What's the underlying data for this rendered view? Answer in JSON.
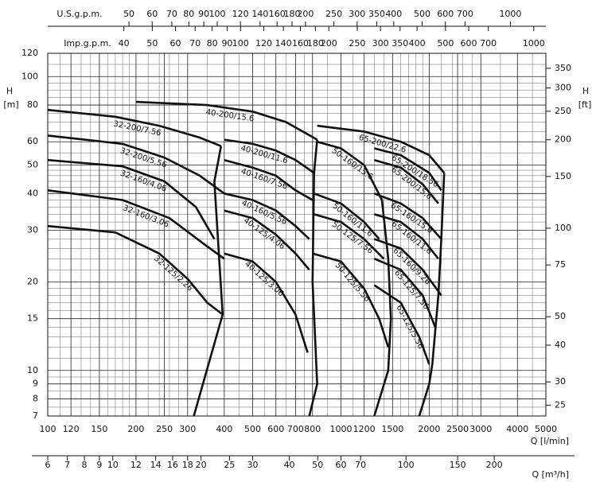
{
  "chart_data": {
    "type": "line",
    "log_x": true,
    "log_y": true,
    "grid": true,
    "color": "#111111",
    "xlabel": "Q [l/min]",
    "ylabel": "H",
    "ylabel_unit": "[m]",
    "y2label": "H",
    "y2label_unit": "[ft]",
    "xlim": [
      100,
      5000
    ],
    "xticks": [
      100,
      120,
      150,
      200,
      250,
      300,
      400,
      500,
      600,
      700,
      800,
      1000,
      1200,
      1500,
      2000,
      2500,
      3000,
      4000,
      5000
    ],
    "ylim": [
      7,
      120
    ],
    "yticks": [
      7,
      8,
      9,
      10,
      15,
      20,
      30,
      40,
      50,
      60,
      80,
      100,
      120
    ],
    "x_minor_grid": [
      110,
      130,
      140,
      160,
      170,
      180,
      190,
      220,
      240,
      260,
      280,
      350,
      450,
      550,
      650,
      750,
      900,
      1100,
      1300,
      1400,
      1600,
      1700,
      1800,
      1900,
      2200,
      2400,
      2600,
      2800,
      3500,
      4500
    ],
    "y_minor_grid": [
      7.5,
      8.5,
      9.5,
      11,
      12,
      13,
      14,
      16,
      17,
      18,
      19,
      22,
      24,
      26,
      28,
      32,
      34,
      36,
      38,
      42,
      44,
      46,
      48,
      55,
      65,
      70,
      75,
      85,
      90,
      95,
      110
    ],
    "y2lim": [
      22.97,
      393.7
    ],
    "y2ticks": [
      25,
      30,
      40,
      50,
      75,
      100,
      150,
      200,
      250,
      300,
      350
    ],
    "top_axes": [
      {
        "label": "U.S.g.p.m.",
        "xlim": [
          26.42,
          1321
        ],
        "xticks": [
          50,
          60,
          70,
          80,
          90,
          100,
          120,
          140,
          160,
          180,
          200,
          250,
          300,
          350,
          400,
          500,
          600,
          700,
          1000
        ]
      },
      {
        "label": "Imp.g.p.m.",
        "xlim": [
          22.0,
          1099.8
        ],
        "xticks": [
          40,
          50,
          60,
          70,
          80,
          90,
          100,
          120,
          140,
          160,
          180,
          200,
          250,
          300,
          350,
          400,
          500,
          600,
          700,
          1000
        ]
      }
    ],
    "x2": {
      "label": "Q [m³/h]",
      "xlim": [
        6,
        300
      ],
      "xticks": [
        6,
        7,
        8,
        9,
        10,
        12,
        14,
        16,
        18,
        20,
        25,
        30,
        40,
        50,
        60,
        70,
        100,
        150,
        200
      ]
    },
    "series": [
      {
        "name": "32-200/7.56",
        "x": [
          100,
          170,
          240,
          330,
          390
        ],
        "values": [
          77,
          73,
          68,
          62,
          58
        ]
      },
      {
        "name": "32-200/5.56",
        "x": [
          100,
          180,
          250,
          330,
          400
        ],
        "values": [
          63,
          59,
          53,
          46,
          40
        ]
      },
      {
        "name": "32-160/4.06",
        "x": [
          100,
          180,
          250,
          320,
          370
        ],
        "values": [
          52,
          49.5,
          44,
          36,
          28
        ]
      },
      {
        "name": "32-160/3.06",
        "x": [
          100,
          180,
          260,
          340,
          400
        ],
        "values": [
          41,
          38,
          33,
          27,
          24
        ]
      },
      {
        "name": "32-125/2.26",
        "x": [
          100,
          170,
          240,
          300,
          350,
          395
        ],
        "values": [
          31,
          29.5,
          25,
          20.5,
          17,
          15.5
        ]
      },
      {
        "name": "40-200/15.6",
        "x": [
          200,
          350,
          500,
          650,
          830
        ],
        "values": [
          82,
          80,
          76,
          70,
          61
        ]
      },
      {
        "name": "40-200/11.6",
        "x": [
          400,
          500,
          600,
          700,
          810
        ],
        "values": [
          61,
          59,
          56,
          52,
          47
        ]
      },
      {
        "name": "40-160/7.56",
        "x": [
          400,
          500,
          600,
          700,
          800
        ],
        "values": [
          52,
          49,
          46,
          41,
          38
        ]
      },
      {
        "name": "40-160/5.56",
        "x": [
          400,
          500,
          600,
          700,
          780
        ],
        "values": [
          40,
          38,
          35,
          31,
          28
        ]
      },
      {
        "name": "40-125/4.06",
        "x": [
          400,
          500,
          600,
          700,
          780
        ],
        "values": [
          35,
          33,
          29,
          25,
          22
        ]
      },
      {
        "name": "40-125/3.06",
        "x": [
          400,
          500,
          600,
          700,
          770
        ],
        "values": [
          25,
          23.5,
          20,
          15.5,
          11.5
        ]
      },
      {
        "name": "50-160/15.6",
        "x": [
          830,
          1000,
          1200,
          1380
        ],
        "values": [
          60,
          57,
          50,
          38
        ]
      },
      {
        "name": "50-160/11.6",
        "x": [
          810,
          1000,
          1200,
          1350
        ],
        "values": [
          40,
          37,
          32,
          28
        ]
      },
      {
        "name": "50-125/7.56",
        "x": [
          810,
          1000,
          1200,
          1400
        ],
        "values": [
          34,
          32,
          28,
          24
        ]
      },
      {
        "name": "50-125/5.56",
        "x": [
          800,
          1000,
          1200,
          1350,
          1450
        ],
        "values": [
          25,
          23.5,
          19,
          15,
          12
        ]
      },
      {
        "name": "65-200/22.6",
        "x": [
          830,
          1200,
          1600,
          2000,
          2250
        ],
        "values": [
          68,
          65,
          60,
          54,
          47
        ]
      },
      {
        "name": "65-200/18.56",
        "x": [
          1300,
          1600,
          2000,
          2200
        ],
        "values": [
          57,
          54,
          47,
          41
        ]
      },
      {
        "name": "65-200/15.6",
        "x": [
          1300,
          1600,
          1900,
          2150
        ],
        "values": [
          52,
          49,
          43,
          37
        ]
      },
      {
        "name": "65-160/15.6",
        "x": [
          1300,
          1600,
          1900,
          2200
        ],
        "values": [
          40,
          37,
          33,
          28
        ]
      },
      {
        "name": "65-160/11.6",
        "x": [
          1300,
          1600,
          1900,
          2150
        ],
        "values": [
          34,
          32,
          28,
          24
        ]
      },
      {
        "name": "65-160/9.26",
        "x": [
          1300,
          1600,
          1900,
          2200
        ],
        "values": [
          28,
          26,
          22,
          18
        ]
      },
      {
        "name": "65-125/7.56",
        "x": [
          1300,
          1600,
          1900,
          2100
        ],
        "values": [
          24,
          22,
          18,
          14
        ]
      },
      {
        "name": "65-125/5.56",
        "x": [
          1300,
          1600,
          1850,
          2000
        ],
        "values": [
          19.5,
          17,
          13,
          10.5
        ]
      }
    ],
    "limits": [
      {
        "x": [
          390,
          370,
          395,
          315
        ],
        "values": [
          58,
          44,
          15.5,
          7
        ]
      },
      {
        "x": [
          830,
          810,
          800,
          830,
          780
        ],
        "values": [
          61,
          47,
          20,
          9,
          7
        ]
      },
      {
        "x": [
          1380,
          1450,
          1480,
          1450,
          1300
        ],
        "values": [
          38,
          24,
          15,
          10,
          7
        ]
      },
      {
        "x": [
          2250,
          2200,
          2150,
          2050,
          2000,
          1850
        ],
        "values": [
          47,
          28,
          18,
          10.5,
          9,
          7
        ]
      }
    ]
  }
}
